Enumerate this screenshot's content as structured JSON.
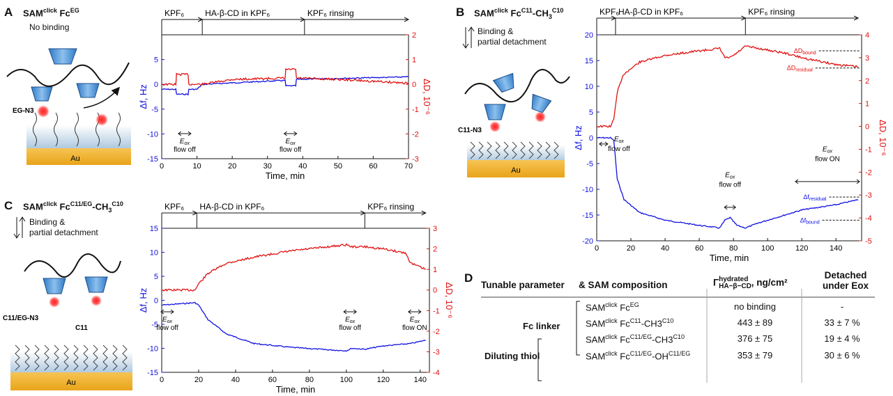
{
  "figure": {
    "panels": {
      "A": {
        "letter": "A",
        "sam_prefix": "SAM",
        "sam_sup": "click",
        "sam_fc": "Fc",
        "sam_fc_sup": "EG",
        "note": "No binding",
        "label_linker": "EG-N3",
        "label_au": "Au"
      },
      "B": {
        "letter": "B",
        "sam_prefix": "SAM",
        "sam_sup": "click",
        "sam_fc": "Fc",
        "sam_fc_sup": "C11",
        "sam_tail": "-CH",
        "sam_tail_sub": "3",
        "sam_tail_sup": "C10",
        "note1": "Binding &",
        "note2": "partial detachment",
        "label_linker": "C11-N3",
        "label_au": "Au"
      },
      "C": {
        "letter": "C",
        "sam_prefix": "SAM",
        "sam_sup": "click",
        "sam_fc": "Fc",
        "sam_fc_sup": "C11/EG",
        "sam_tail": "-CH",
        "sam_tail_sub": "3",
        "sam_tail_sup": "C10",
        "note1": "Binding &",
        "note2": "partial detachment",
        "label_linker": "C11/EG-N3",
        "label_c11": "C11",
        "label_au": "Au"
      },
      "D": {
        "letter": "D"
      }
    }
  },
  "chart_data": [
    {
      "id": "A",
      "type": "line",
      "phases": [
        {
          "label": "KPF6",
          "x0": 0,
          "x1": 11.5
        },
        {
          "label": "HA-β-CD in KPF6",
          "x0": 11.5,
          "x1": 40.5
        },
        {
          "label": "KPF6 rinsing",
          "x0": 40.5,
          "x1": 70
        }
      ],
      "xlabel": "Time, min",
      "ylabel_left": "Δf, Hz",
      "ylabel_right": "ΔD, 10-6",
      "xlim": [
        0,
        70
      ],
      "ylim_left": [
        -15,
        10
      ],
      "ylim_right": [
        -3,
        2
      ],
      "xticks": [
        0,
        10,
        20,
        30,
        40,
        50,
        60,
        70
      ],
      "yticks_left": [
        -15,
        -10,
        -5,
        0,
        5
      ],
      "yticks_right": [
        -3,
        -2,
        -1,
        0,
        1,
        2
      ],
      "annotations": [
        {
          "x": 6.5,
          "label1": "Eox",
          "label2": "flow off"
        },
        {
          "x": 36.5,
          "label1": "Eox",
          "label2": "flow off"
        }
      ],
      "series": [
        {
          "axis": "left",
          "color": "#1010e0",
          "points": [
            [
              0,
              -1
            ],
            [
              4,
              -1
            ],
            [
              4.2,
              -2
            ],
            [
              7.5,
              -2
            ],
            [
              7.7,
              -1
            ],
            [
              10,
              -1
            ],
            [
              11.5,
              0
            ],
            [
              20,
              0.3
            ],
            [
              35,
              0.8
            ],
            [
              35.2,
              -0.3
            ],
            [
              38,
              -0.3
            ],
            [
              38.2,
              1
            ],
            [
              50,
              1.2
            ],
            [
              70,
              1.5
            ]
          ]
        },
        {
          "axis": "right",
          "color": "#e01010",
          "points": [
            [
              0,
              0
            ],
            [
              4,
              0
            ],
            [
              4.2,
              0.4
            ],
            [
              7.5,
              0.4
            ],
            [
              7.7,
              0
            ],
            [
              11.5,
              0
            ],
            [
              20,
              0.2
            ],
            [
              35,
              0.25
            ],
            [
              35.2,
              0.6
            ],
            [
              38,
              0.6
            ],
            [
              38.2,
              0.25
            ],
            [
              50,
              0.2
            ],
            [
              70,
              0.05
            ]
          ]
        }
      ]
    },
    {
      "id": "B",
      "type": "line",
      "phases": [
        {
          "label": "KPF6",
          "x0": 0,
          "x1": 11
        },
        {
          "label": "HA-β-CD in KPF6",
          "x0": 11,
          "x1": 87
        },
        {
          "label": "KPF6 rinsing",
          "x0": 87,
          "x1": 153
        }
      ],
      "xlabel": "Time, min",
      "ylabel_left": "Δf, Hz",
      "ylabel_right": "ΔD, 10-6",
      "xlim": [
        0,
        155
      ],
      "ylim_left": [
        -20,
        20
      ],
      "ylim_right": [
        -5,
        4
      ],
      "xticks": [
        0,
        20,
        40,
        60,
        80,
        100,
        120,
        140
      ],
      "yticks_left": [
        -20,
        -15,
        -10,
        -5,
        0,
        5,
        10,
        15,
        20
      ],
      "yticks_right": [
        -5,
        -4,
        -3,
        -2,
        -1,
        0,
        1,
        2,
        3,
        4
      ],
      "annotations": [
        {
          "x": 4,
          "label1": "Eox",
          "label2": "flow off",
          "type": "arrow"
        },
        {
          "x": 78,
          "label1": "Eox",
          "label2": "flow off",
          "type": "arrow"
        },
        {
          "x": 135,
          "label1": "Eox",
          "label2": "flow ON",
          "type": "arrow"
        }
      ],
      "markers": [
        {
          "label": "ΔDbound",
          "color": "#e01010",
          "x": 130,
          "y_right": 3.3
        },
        {
          "label": "ΔDresidual",
          "color": "#e01010",
          "x": 128,
          "y_right": 2.55
        },
        {
          "label": "Δfresidual",
          "color": "#1010e0",
          "x": 136,
          "y_left": -11.5
        },
        {
          "label": "Δfbound",
          "color": "#1010e0",
          "x": 132,
          "y_left": -16
        }
      ],
      "series": [
        {
          "axis": "left",
          "color": "#1010e0",
          "points": [
            [
              0,
              0
            ],
            [
              8,
              0
            ],
            [
              10,
              -0.5
            ],
            [
              12,
              -8
            ],
            [
              16,
              -12
            ],
            [
              25,
              -14.5
            ],
            [
              40,
              -16
            ],
            [
              60,
              -17
            ],
            [
              72,
              -17.5
            ],
            [
              75,
              -16
            ],
            [
              78,
              -15.5
            ],
            [
              82,
              -17
            ],
            [
              87,
              -17.5
            ],
            [
              95,
              -16.5
            ],
            [
              110,
              -15
            ],
            [
              120,
              -14
            ],
            [
              140,
              -13
            ],
            [
              153,
              -12
            ]
          ]
        },
        {
          "axis": "right",
          "color": "#e01010",
          "points": [
            [
              0,
              0
            ],
            [
              8,
              0
            ],
            [
              10,
              0.3
            ],
            [
              12,
              1.5
            ],
            [
              16,
              2.3
            ],
            [
              25,
              2.8
            ],
            [
              40,
              3.1
            ],
            [
              60,
              3.3
            ],
            [
              72,
              3.4
            ],
            [
              75,
              3.0
            ],
            [
              78,
              3.0
            ],
            [
              82,
              3.2
            ],
            [
              87,
              3.5
            ],
            [
              95,
              3.4
            ],
            [
              110,
              3.2
            ],
            [
              120,
              3.0
            ],
            [
              140,
              2.7
            ],
            [
              153,
              2.6
            ]
          ]
        }
      ]
    },
    {
      "id": "C",
      "type": "line",
      "phases": [
        {
          "label": "KPF6",
          "x0": 0,
          "x1": 19
        },
        {
          "label": "HA-β-CD in KPF6",
          "x0": 19,
          "x1": 110
        },
        {
          "label": "KPF6 rinsing",
          "x0": 110,
          "x1": 143
        }
      ],
      "xlabel": "Time, min",
      "ylabel_left": "Δf, Hz",
      "ylabel_right": "ΔD, 10-6",
      "xlim": [
        0,
        145
      ],
      "ylim_left": [
        -15,
        15
      ],
      "ylim_right": [
        -4,
        3
      ],
      "xticks": [
        0,
        20,
        40,
        60,
        80,
        100,
        120,
        140
      ],
      "yticks_left": [
        -15,
        -10,
        -5,
        0,
        5,
        10,
        15
      ],
      "yticks_right": [
        -4,
        -3,
        -2,
        -1,
        0,
        1,
        2,
        3
      ],
      "annotations": [
        {
          "x": 3,
          "label1": "Eox",
          "label2": "flow off"
        },
        {
          "x": 102,
          "label1": "Eox",
          "label2": "flow off"
        },
        {
          "x": 137,
          "label1": "Eox",
          "label2": "flow ON"
        }
      ],
      "series": [
        {
          "axis": "left",
          "color": "#1010e0",
          "points": [
            [
              0,
              -1
            ],
            [
              18,
              -0.5
            ],
            [
              20,
              -1
            ],
            [
              25,
              -4
            ],
            [
              35,
              -7
            ],
            [
              50,
              -9
            ],
            [
              70,
              -9.8
            ],
            [
              90,
              -10.3
            ],
            [
              100,
              -10.5
            ],
            [
              103,
              -10
            ],
            [
              110,
              -10.2
            ],
            [
              120,
              -9.5
            ],
            [
              135,
              -9
            ],
            [
              143,
              -8.3
            ]
          ]
        },
        {
          "axis": "right",
          "color": "#e01010",
          "points": [
            [
              0,
              0
            ],
            [
              18,
              0
            ],
            [
              20,
              0.3
            ],
            [
              25,
              0.8
            ],
            [
              35,
              1.3
            ],
            [
              50,
              1.6
            ],
            [
              70,
              1.9
            ],
            [
              90,
              2.1
            ],
            [
              100,
              2.2
            ],
            [
              103,
              2.1
            ],
            [
              110,
              2.1
            ],
            [
              120,
              2.0
            ],
            [
              132,
              1.8
            ],
            [
              135,
              1.3
            ],
            [
              143,
              1.0
            ]
          ]
        }
      ]
    }
  ],
  "table": {
    "letter": "D",
    "headers": {
      "c1": "Tunable parameter",
      "c2": "& SAM composition",
      "c3_main": "Γ",
      "c3_sup": "hydrated",
      "c3_sub": "HA−β−CD",
      "c3_unit": ", ng/cm²",
      "c4_line1": "Detached",
      "c4_line2": "under Eox"
    },
    "group_labels": {
      "fc_linker": "Fc linker",
      "diluting_thiol": "Diluting thiol"
    },
    "rows": [
      {
        "sam": "SAM",
        "sam_sup": "click",
        "fc": " Fc",
        "fc_sup": "EG",
        "tail": "",
        "tail_sup": "",
        "gamma": "no binding",
        "detached": "-"
      },
      {
        "sam": "SAM",
        "sam_sup": "click",
        "fc": " Fc",
        "fc_sup": "C11",
        "tail": "-CH3",
        "tail_sup": "C10",
        "gamma": "443 ± 89",
        "detached": "33 ± 7 %"
      },
      {
        "sam": "SAM",
        "sam_sup": "click",
        "fc": " Fc",
        "fc_sup": "C11/EG",
        "tail": "-CH3",
        "tail_sup": "C10",
        "gamma": "376 ± 75",
        "detached": "19 ± 4 %"
      },
      {
        "sam": "SAM",
        "sam_sup": "click",
        "fc": " Fc",
        "fc_sup": "C11/EG",
        "tail": "-OH",
        "tail_sup": "C11/EG",
        "gamma": "353 ± 79",
        "detached": "30 ± 6 %"
      }
    ]
  }
}
